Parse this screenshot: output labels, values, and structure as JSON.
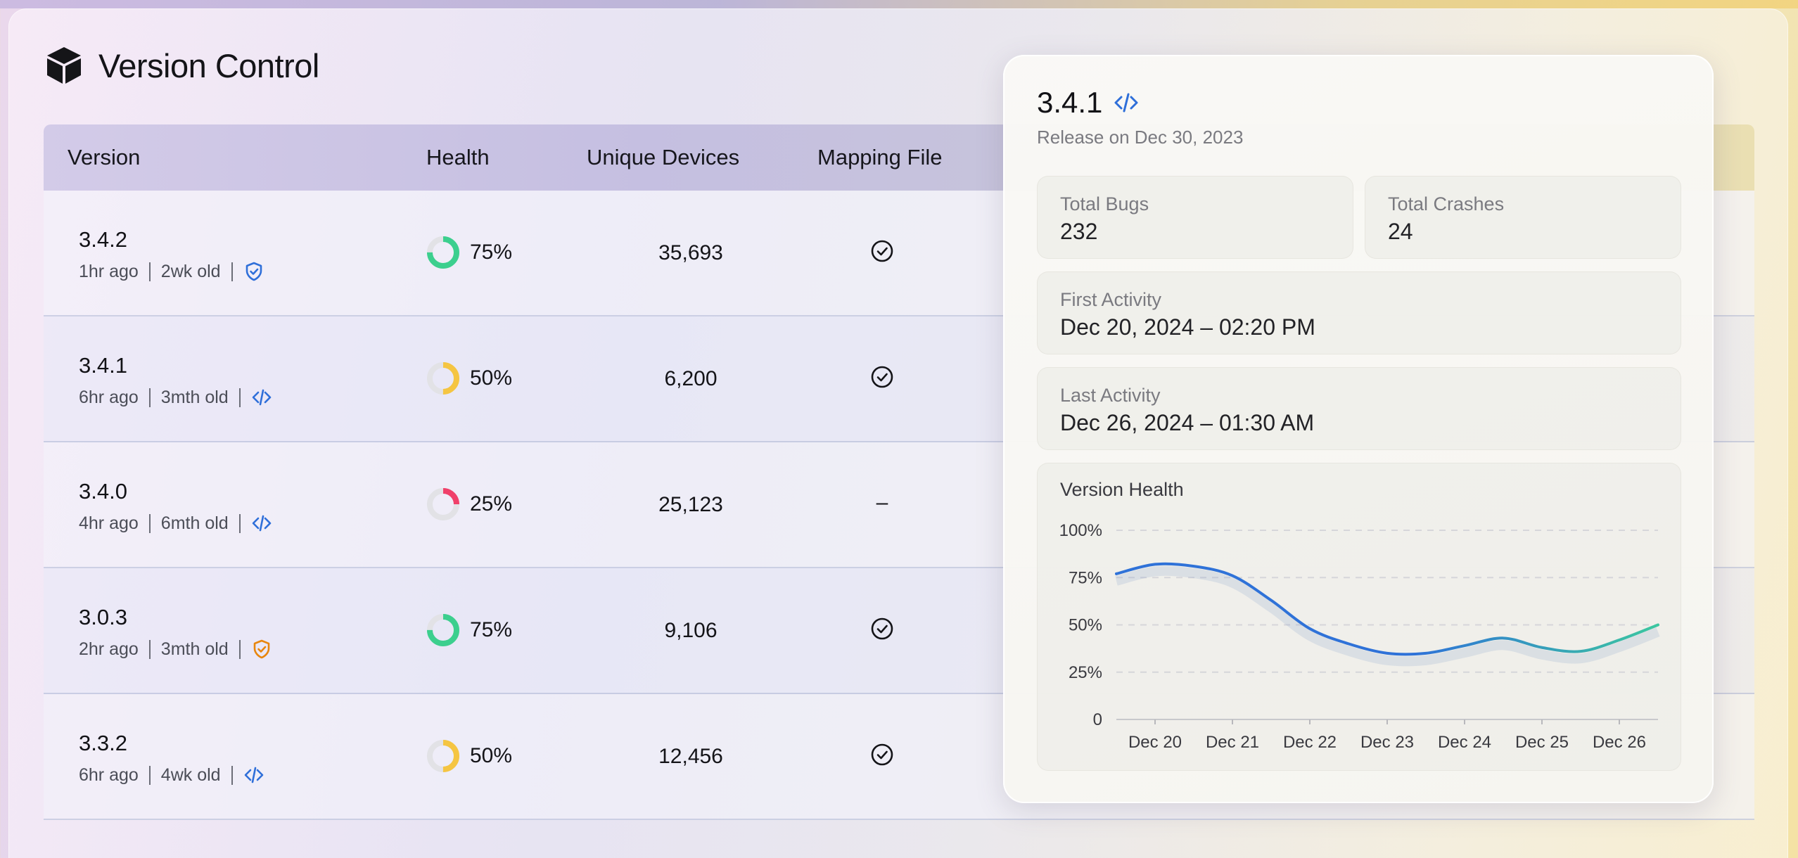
{
  "app": {
    "title": "Version Control",
    "icon": "cube-icon"
  },
  "table": {
    "headers": [
      "Version",
      "Health",
      "Unique Devices",
      "Mapping File"
    ],
    "rows": [
      {
        "version": "3.4.2",
        "last_seen": "1hr ago",
        "age": "2wk old",
        "icon": "shield-check-icon",
        "icon_color": "#2f6fd9",
        "health": "75%",
        "health_value": 0.75,
        "health_color": "#3ccf8e",
        "devices": "35,693",
        "mapping": "check-circle-icon"
      },
      {
        "version": "3.4.1",
        "last_seen": "6hr ago",
        "age": "3mth old",
        "icon": "code-icon",
        "icon_color": "#2f6fd9",
        "health": "50%",
        "health_value": 0.5,
        "health_color": "#f5c542",
        "devices": "6,200",
        "mapping": "check-circle-icon"
      },
      {
        "version": "3.4.0",
        "last_seen": "4hr ago",
        "age": "6mth old",
        "icon": "code-icon",
        "icon_color": "#2f6fd9",
        "health": "25%",
        "health_value": 0.25,
        "health_color": "#f0406a",
        "devices": "25,123",
        "mapping_text": "–"
      },
      {
        "version": "3.0.3",
        "last_seen": "2hr ago",
        "age": "3mth old",
        "icon": "shield-check-icon",
        "icon_color": "#e8860e",
        "health": "75%",
        "health_value": 0.75,
        "health_color": "#3ccf8e",
        "devices": "9,106",
        "mapping": "check-circle-icon"
      },
      {
        "version": "3.3.2",
        "last_seen": "6hr ago",
        "age": "4wk old",
        "icon": "code-icon",
        "icon_color": "#2f6fd9",
        "health": "50%",
        "health_value": 0.5,
        "health_color": "#f5c542",
        "devices": "12,456",
        "mapping": "check-circle-icon"
      }
    ]
  },
  "detail": {
    "version": "3.4.1",
    "release": "Release on Dec 30, 2023",
    "total_bugs_label": "Total Bugs",
    "total_bugs": "232",
    "total_crashes_label": "Total Crashes",
    "total_crashes": "24",
    "first_activity_label": "First Activity",
    "first_activity": "Dec 20, 2024 – 02:20 PM",
    "last_activity_label": "Last Activity",
    "last_activity": "Dec 26, 2024 – 01:30 AM",
    "chart_title": "Version Health"
  },
  "chart_data": {
    "type": "line",
    "title": "Version Health",
    "categories": [
      "Dec 20",
      "Dec 21",
      "Dec 22",
      "Dec 23",
      "Dec 24",
      "Dec 25",
      "Dec 26"
    ],
    "y_ticks": [
      "100%",
      "75%",
      "50%",
      "25%",
      "0"
    ],
    "ylim": [
      0,
      100
    ],
    "grid": true,
    "series": [
      {
        "x": [
          19.5,
          20.0,
          20.5,
          21.0,
          21.5,
          22.0,
          22.5,
          23.0,
          23.5,
          24.0,
          24.5,
          25.0,
          25.5,
          26.0,
          26.5
        ],
        "values": [
          77,
          82,
          81,
          76,
          63,
          48,
          40,
          35,
          35,
          39,
          43,
          38,
          36,
          42,
          50
        ]
      }
    ],
    "line_colors": [
      "#2f72d8",
      "#3cc7a0"
    ]
  }
}
